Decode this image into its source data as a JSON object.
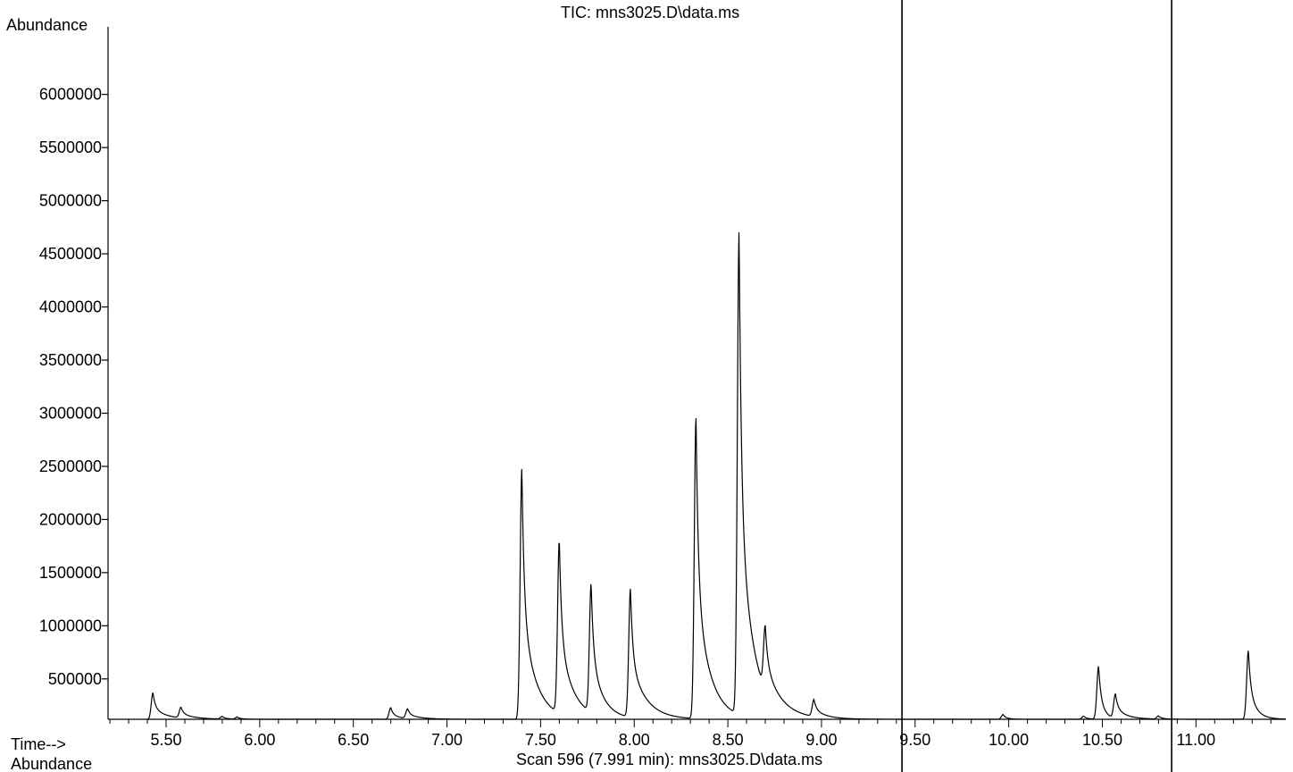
{
  "chart_data": {
    "type": "line",
    "title": "TIC: mns3025.D\\data.ms",
    "ylabel": "Abundance",
    "xlabel": "Time-->",
    "footer_label": "Abundance",
    "footer_scan": "Scan 596 (7.991 min): mns3025.D\\data.ms",
    "xlim": [
      5.19,
      11.48
    ],
    "ylim": [
      120000,
      6300000
    ],
    "x_ticks": [
      "5.50",
      "6.00",
      "6.50",
      "7.00",
      "7.50",
      "8.00",
      "8.50",
      "9.00",
      "9.50",
      "10.00",
      "10.50",
      "11.00"
    ],
    "y_ticks": [
      "500000",
      "1000000",
      "1500000",
      "2000000",
      "2500000",
      "3000000",
      "3500000",
      "4000000",
      "4500000",
      "5000000",
      "5500000",
      "6000000"
    ],
    "markers": [
      9.43,
      10.87
    ],
    "baseline": 120000,
    "series": [
      {
        "peaks": [
          {
            "rt": 5.43,
            "height": 370000,
            "tail": 0.07
          },
          {
            "rt": 5.58,
            "height": 220000,
            "tail": 0.07
          },
          {
            "rt": 5.8,
            "height": 145000,
            "tail": 0.03
          },
          {
            "rt": 5.88,
            "height": 140000,
            "tail": 0.03
          },
          {
            "rt": 6.7,
            "height": 230000,
            "tail": 0.05
          },
          {
            "rt": 6.79,
            "height": 210000,
            "tail": 0.07
          },
          {
            "rt": 7.4,
            "height": 2480000,
            "tail": 0.07
          },
          {
            "rt": 7.6,
            "height": 1750000,
            "tail": 0.07
          },
          {
            "rt": 7.77,
            "height": 1330000,
            "tail": 0.06
          },
          {
            "rt": 7.98,
            "height": 1330000,
            "tail": 0.08
          },
          {
            "rt": 8.33,
            "height": 2960000,
            "tail": 0.07
          },
          {
            "rt": 8.56,
            "height": 4670000,
            "tail": 0.07
          },
          {
            "rt": 8.7,
            "height": 720000,
            "tail": 0.1
          },
          {
            "rt": 8.96,
            "height": 280000,
            "tail": 0.06
          },
          {
            "rt": 9.97,
            "height": 165000,
            "tail": 0.03
          },
          {
            "rt": 10.4,
            "height": 150000,
            "tail": 0.03
          },
          {
            "rt": 10.48,
            "height": 620000,
            "tail": 0.03
          },
          {
            "rt": 10.57,
            "height": 350000,
            "tail": 0.06
          },
          {
            "rt": 10.8,
            "height": 150000,
            "tail": 0.03
          },
          {
            "rt": 11.28,
            "height": 770000,
            "tail": 0.04
          }
        ]
      }
    ]
  }
}
